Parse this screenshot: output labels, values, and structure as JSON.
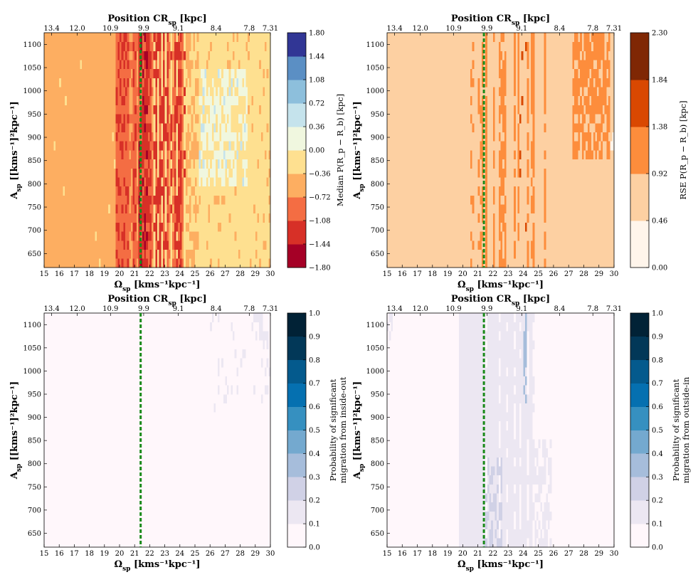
{
  "chart_data": [
    {
      "type": "heatmap",
      "id": "median",
      "top_title": "Position CR",
      "top_title_sub": "sp",
      "top_title_unit": "[kpc]",
      "top_ticks": [
        "13.4",
        "12.0",
        "10.9",
        "9.9",
        "9.1",
        "8.4",
        "7.8",
        "7.31"
      ],
      "xlabel": "Ω",
      "xlabel_sub": "sp",
      "xlabel_unit": "[kms⁻¹kpc⁻¹]",
      "ylabel": "A",
      "ylabel_sub": "sp",
      "ylabel_unit": "[[kms⁻¹]²kpc⁻¹]",
      "x_range": [
        15,
        30
      ],
      "y_range": [
        620,
        1125
      ],
      "x_ticks": [
        15,
        16,
        17,
        18,
        19,
        20,
        21,
        22,
        23,
        24,
        25,
        26,
        27,
        28,
        29,
        30
      ],
      "y_ticks": [
        650,
        700,
        750,
        800,
        850,
        900,
        950,
        1000,
        1050,
        1100
      ],
      "resonance_line_x": 21.4,
      "colorbar": {
        "label": "Median P(R_p − R_b) [kpc]",
        "ticks": [
          "−1.80",
          "−1.44",
          "−1.08",
          "−0.72",
          "−0.36",
          "0.00",
          "0.36",
          "0.72",
          "1.08",
          "1.44",
          "1.80"
        ],
        "colors": [
          "#a50026",
          "#d73027",
          "#f46d43",
          "#fdae61",
          "#fee090",
          "#f0f7df",
          "#c5e3ec",
          "#8dbfdc",
          "#5b8fc4",
          "#313695"
        ]
      },
      "summary": "Mostly -0.72 to -0.36 for low pattern speeds; strong negative (down to -1.44) columns between Ω≈19.8 and 24.3, peaking near the resonance line; values near 0 to 0.36 for Ω above ~24.5"
    },
    {
      "type": "heatmap",
      "id": "rse",
      "top_title": "Position CR",
      "top_title_sub": "sp",
      "top_title_unit": "[kpc]",
      "top_ticks": [
        "13.4",
        "12.0",
        "10.9",
        "9.9",
        "9.1",
        "8.4",
        "7.8",
        "7.31"
      ],
      "xlabel": "Ω",
      "xlabel_sub": "sp",
      "xlabel_unit": "[kms⁻¹kpc⁻¹]",
      "ylabel": "A",
      "ylabel_sub": "sp",
      "ylabel_unit": "[[kms⁻¹]²kpc⁻¹]",
      "x_range": [
        15,
        30
      ],
      "y_range": [
        620,
        1125
      ],
      "x_ticks": [
        15,
        16,
        17,
        18,
        19,
        20,
        21,
        22,
        23,
        24,
        25,
        26,
        27,
        28,
        29,
        30
      ],
      "y_ticks": [
        650,
        700,
        750,
        800,
        850,
        900,
        950,
        1000,
        1050,
        1100
      ],
      "resonance_line_x": 21.4,
      "colorbar": {
        "label": "RSE P(R_p − R_b) [kpc]",
        "ticks": [
          "0.00",
          "0.46",
          "0.92",
          "1.38",
          "1.84",
          "2.30"
        ],
        "colors": [
          "#fff5eb",
          "#fdd0a2",
          "#fd8d3c",
          "#d94801",
          "#7f2704"
        ]
      },
      "summary": "Uniform 0.46-0.92 background; 0.92-1.38 streaks near Ω 21-25 and block at Ω 27.3-29.8, A>850; isolated 1.38-1.84 cells near Ω≈24"
    },
    {
      "type": "heatmap",
      "id": "prob_inside_out",
      "top_title": "Position CR",
      "top_title_sub": "sp",
      "top_title_unit": "[kpc]",
      "top_ticks": [
        "13.4",
        "12.0",
        "10.9",
        "9.9",
        "9.1",
        "8.4",
        "7.8",
        "7.31"
      ],
      "xlabel": "Ω",
      "xlabel_sub": "sp",
      "xlabel_unit": "[kms⁻¹kpc⁻¹]",
      "ylabel": "A",
      "ylabel_sub": "sp",
      "ylabel_unit": "[[kms⁻¹]²kpc⁻¹]",
      "x_range": [
        15,
        30
      ],
      "y_range": [
        620,
        1125
      ],
      "x_ticks": [
        15,
        16,
        17,
        18,
        19,
        20,
        21,
        22,
        23,
        24,
        25,
        26,
        27,
        28,
        29,
        30
      ],
      "y_ticks": [
        650,
        700,
        750,
        800,
        850,
        900,
        950,
        1000,
        1050,
        1100
      ],
      "resonance_line_x": 21.4,
      "colorbar": {
        "label_line1": "Probability of significant",
        "label_line2": "migration from inside-out",
        "ticks": [
          "0.0",
          "0.1",
          "0.2",
          "0.3",
          "0.4",
          "0.5",
          "0.6",
          "0.7",
          "0.8",
          "0.9",
          "1.0"
        ],
        "colors": [
          "#fff7fb",
          "#ece7f2",
          "#d0d1e6",
          "#a6bddb",
          "#74a9cf",
          "#3690c0",
          "#0570b0",
          "#045a8d",
          "#023858",
          "#012236"
        ]
      },
      "summary": "Nearly all values below 0.1; a few 0.1-0.2 cells at high A for Ω above 26"
    },
    {
      "type": "heatmap",
      "id": "prob_outside_in",
      "top_title": "Position CR",
      "top_title_sub": "sp",
      "top_title_unit": "[kpc]",
      "top_ticks": [
        "13.4",
        "12.0",
        "10.9",
        "9.9",
        "9.1",
        "8.4",
        "7.8",
        "7.31"
      ],
      "xlabel": "Ω",
      "xlabel_sub": "sp",
      "xlabel_unit": "[kms⁻¹kpc⁻¹]",
      "ylabel": "A",
      "ylabel_sub": "sp",
      "ylabel_unit": "[[kms⁻¹]²kpc⁻¹]",
      "x_range": [
        15,
        30
      ],
      "y_range": [
        620,
        1125
      ],
      "x_ticks": [
        15,
        16,
        17,
        18,
        19,
        20,
        21,
        22,
        23,
        24,
        25,
        26,
        27,
        28,
        29,
        30
      ],
      "y_ticks": [
        650,
        700,
        750,
        800,
        850,
        900,
        950,
        1000,
        1050,
        1100
      ],
      "resonance_line_x": 21.4,
      "colorbar": {
        "label_line1": "Probability of significant",
        "label_line2": "migration from outside-in",
        "ticks": [
          "0.0",
          "0.1",
          "0.2",
          "0.3",
          "0.4",
          "0.5",
          "0.6",
          "0.7",
          "0.8",
          "0.9",
          "1.0"
        ],
        "colors": [
          "#fff7fb",
          "#ece7f2",
          "#d0d1e6",
          "#a6bddb",
          "#74a9cf",
          "#3690c0",
          "#0570b0",
          "#045a8d",
          "#023858",
          "#012236"
        ]
      },
      "summary": "0.1-0.2 band for Ω ≈ 19.8-24.8; 0.2-0.3 cells near Ω 21.5-22.5 at low A; 0.3-0.4 streak near Ω ≈ 24.1 at high A"
    }
  ]
}
